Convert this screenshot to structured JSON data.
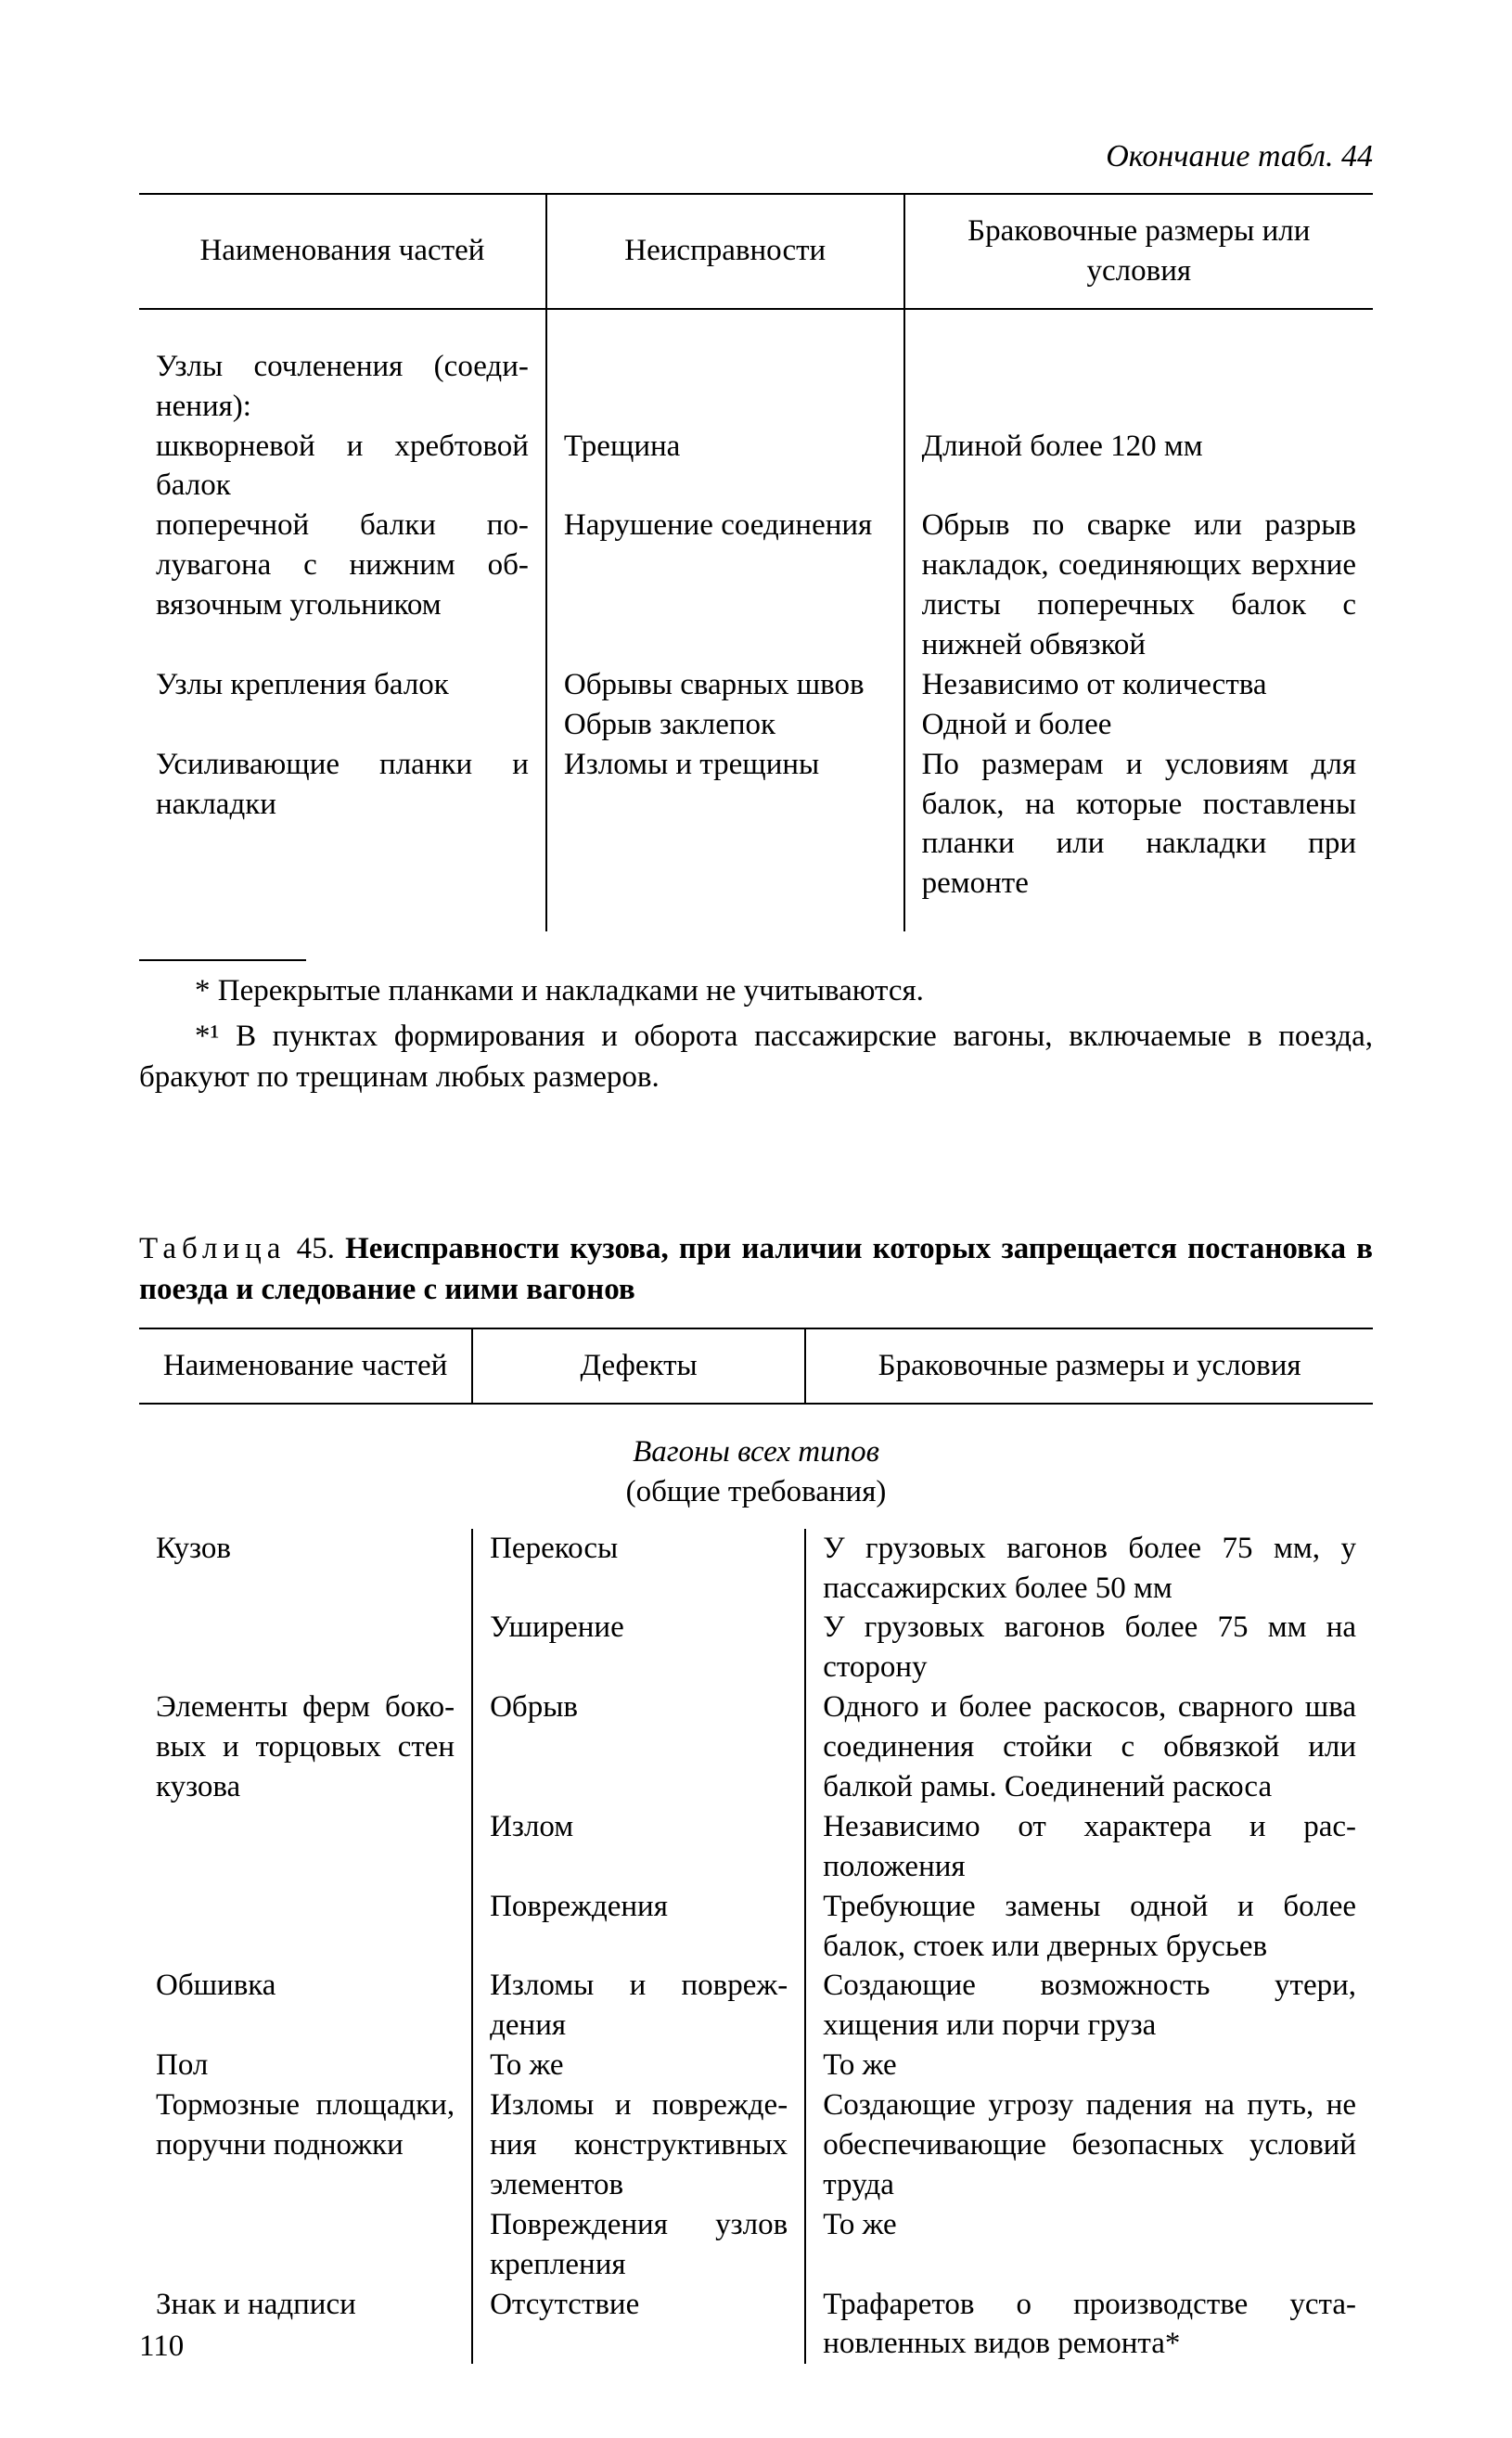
{
  "continuation": "Окончание табл. 44",
  "table44": {
    "headers": [
      "Наименования частей",
      "Неисправности",
      "Браковочные размеры или условия"
    ],
    "rows": [
      {
        "c1": "Узлы сочленения (соеди­нения):",
        "c2": "",
        "c3": "",
        "sub": false
      },
      {
        "c1": "шкворневой и хребто­вой балок",
        "c2": "Трещина",
        "c3": "Длиной более 120 мм",
        "sub": true
      },
      {
        "c1": "поперечной балки по­лувагона с нижним об­вязочным угольником",
        "c2": "Нарушение соединения",
        "c3": "Обрыв по сварке или разрыв накладок, соединяющих верх­ние листы поперечных балок с нижней обвязкой",
        "sub": true
      },
      {
        "c1": "Узлы крепления балок",
        "c2": "Обрывы сварных швов",
        "c3": "Независимо от количества",
        "sub": false
      },
      {
        "c1": "",
        "c2": "Обрыв заклепок",
        "c3": "Одной и более",
        "sub": false
      },
      {
        "c1": "Усиливающие планки и накладки",
        "c2": "Изломы и трещины",
        "c3": "По размерам и условиям для балок, на которые по­ставлены планки или на­кладки при ремонте",
        "sub": false
      }
    ]
  },
  "footnotes": {
    "f1": "* Перекрытые планками и накладками не учитываются.",
    "f2": "*¹ В пунктах формирования и оборота пассажирские вагоны, включаемые в поезда, бракуют по трещинам любых размеров."
  },
  "table45_title_prefix": "Таблица",
  "table45_title_num": "45.",
  "table45_title_bold": "Неисправности кузова, при иаличии которых запрещается постановка в поезда и следование с иими вагонов",
  "table45": {
    "headers": [
      "Наименование частей",
      "Дефекты",
      "Браковочные размеры и условия"
    ],
    "subhead_italic": "Вагоны всех типов",
    "subhead_plain": "(общие требования)",
    "rows": [
      {
        "c1": "Кузов",
        "c2": "Перекосы",
        "c3": "У грузовых вагонов более 75 мм, у пассажирских более 50 мм"
      },
      {
        "c1": "",
        "c2": "Уширение",
        "c3": "У грузовых вагонов более 75 мм на сторону"
      },
      {
        "c1": "Элементы ферм боко­вых и торцовых стен кузова",
        "c2": "Обрыв",
        "c3": "Одного и более раскосов, сварного шва соединения стойки с обвязкой или балкой рамы. Соединений раскоса"
      },
      {
        "c1": "",
        "c2": "Излом",
        "c3": "Независимо от характера и рас­положения"
      },
      {
        "c1": "",
        "c2": "Повреждения",
        "c3": "Требующие замены одной и более балок, стоек или дверных брусьев"
      },
      {
        "c1": "Обшивка",
        "c2": "Изломы и повреж­дения",
        "c3": "Создающие возможность утери, хищения или порчи груза"
      },
      {
        "c1": "Пол",
        "c2": "То же",
        "c3": "То же"
      },
      {
        "c1": "Тормозные площадки, поручни подножки",
        "c2": "Изломы и поврежде­ния конструктивных элементов",
        "c3": "Создающие угрозу падения на путь, не обеспечивающие безопас­ных условий труда"
      },
      {
        "c1": "",
        "c2": "Повреждения узлов крепления",
        "c3": "То же"
      },
      {
        "c1": "Знак и надписи",
        "c2": "Отсутствие",
        "c3": "Трафаретов о производстве уста­новленных видов ремонта*"
      }
    ]
  },
  "page_number": "110"
}
